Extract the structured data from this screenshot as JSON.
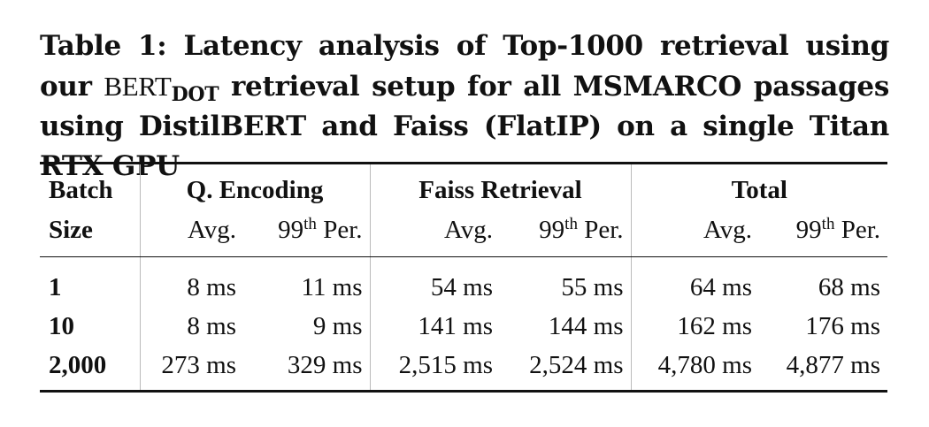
{
  "caption": {
    "label": "Table 1:",
    "text_before": "Latency analysis of Top-1000 retrieval using our",
    "model": "BERT",
    "model_subscript": "DOT",
    "text_after": "retrieval setup for all MSMARCO passages using DistilBERT and Faiss (FlatIP) on a single Titan RTX GPU"
  },
  "table": {
    "batch_header": [
      "Batch",
      "Size"
    ],
    "groups": [
      "Q. Encoding",
      "Faiss Retrieval",
      "Total"
    ],
    "subheaders": {
      "avg": "Avg.",
      "p99_number": "99",
      "p99_superscript": "th",
      "p99_suffix": "Per."
    },
    "rows": [
      [
        "1",
        "8 ms",
        "11 ms",
        "54 ms",
        "55 ms",
        "64 ms",
        "68 ms"
      ],
      [
        "10",
        "8 ms",
        "9 ms",
        "141 ms",
        "144 ms",
        "162 ms",
        "176 ms"
      ],
      [
        "2,000",
        "273 ms",
        "329 ms",
        "2,515 ms",
        "2,524 ms",
        "4,780 ms",
        "4,877 ms"
      ]
    ]
  }
}
